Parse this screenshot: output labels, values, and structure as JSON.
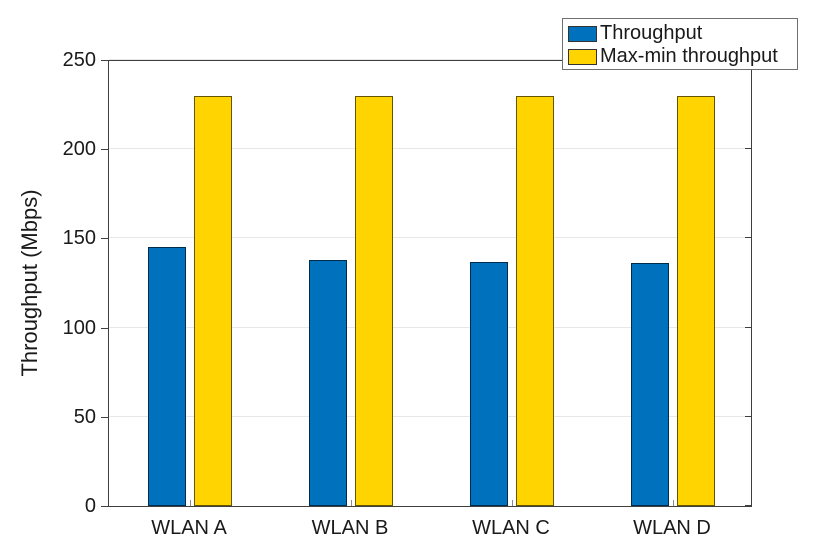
{
  "figure": {
    "background": "#ffffff"
  },
  "chart_data": {
    "type": "bar",
    "categories": [
      "WLAN A",
      "WLAN B",
      "WLAN C",
      "WLAN D"
    ],
    "series": [
      {
        "name": "Throughput",
        "color": "#0072BD",
        "values": [
          145,
          138,
          137,
          136
        ]
      },
      {
        "name": "Max-min throughput",
        "color": "#FFD400",
        "values": [
          230,
          230,
          230,
          230
        ]
      }
    ],
    "title": "",
    "xlabel": "",
    "ylabel": "Throughput (Mbps)",
    "ylim": [
      0,
      250
    ],
    "yticks": [
      0,
      50,
      100,
      150,
      200,
      250
    ],
    "grid": "horizontal",
    "legend_position": "top-right",
    "colors": {
      "axis": "#3f3f3f",
      "gridline": "#e7e7e7",
      "text": "#1a1a1a",
      "bar_edge": "rgba(0,0,0,0.6)",
      "inner_tick": "#8a8a8a"
    }
  }
}
